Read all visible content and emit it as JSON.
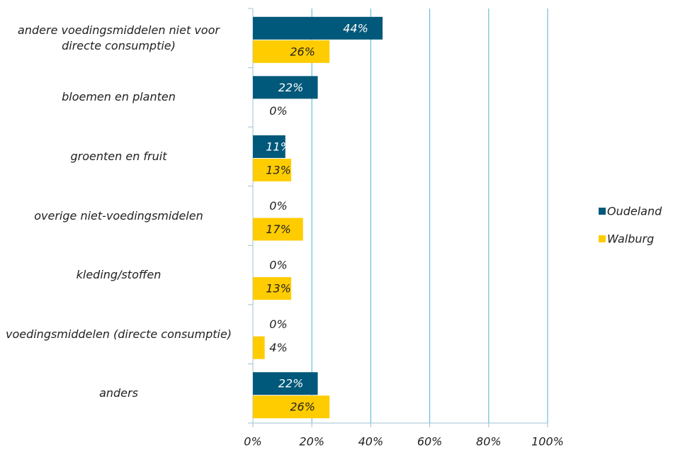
{
  "chart_data": {
    "type": "bar",
    "orientation": "horizontal",
    "categories": [
      "andere voedingsmiddelen niet voor directe consumptie)",
      "bloemen en planten",
      "groenten en fruit",
      "overige niet-voedingsmidelen",
      "kleding/stoffen",
      "voedingsmiddelen (directe consumptie)",
      "anders"
    ],
    "series": [
      {
        "name": "Oudeland",
        "color": "#00587a",
        "values": [
          44,
          22,
          11,
          0,
          0,
          0,
          22
        ],
        "value_labels": [
          "44%",
          "22%",
          "11%",
          "0%",
          "0%",
          "0%",
          "22%"
        ]
      },
      {
        "name": "Walburg",
        "color": "#ffcc00",
        "values": [
          26,
          0,
          13,
          17,
          13,
          4,
          26
        ],
        "value_labels": [
          "26%",
          "0%",
          "13%",
          "17%",
          "13%",
          "4%",
          "26%"
        ]
      }
    ],
    "xlim": [
      0,
      100
    ],
    "xticks": [
      {
        "value": 0,
        "label": "0%"
      },
      {
        "value": 20,
        "label": "20%"
      },
      {
        "value": 40,
        "label": "40%"
      },
      {
        "value": 60,
        "label": "60%"
      },
      {
        "value": 80,
        "label": "80%"
      },
      {
        "value": 100,
        "label": "100%"
      }
    ],
    "grid": true,
    "legend": "right"
  }
}
